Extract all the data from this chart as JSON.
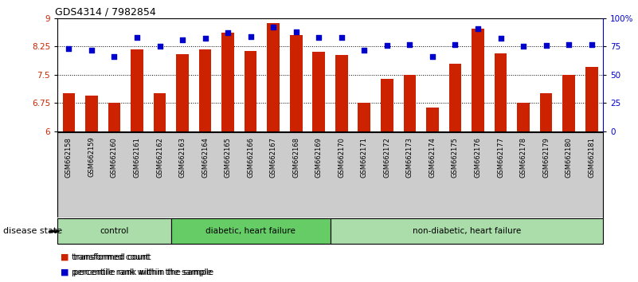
{
  "title": "GDS4314 / 7982854",
  "samples": [
    "GSM662158",
    "GSM662159",
    "GSM662160",
    "GSM662161",
    "GSM662162",
    "GSM662163",
    "GSM662164",
    "GSM662165",
    "GSM662166",
    "GSM662167",
    "GSM662168",
    "GSM662169",
    "GSM662170",
    "GSM662171",
    "GSM662172",
    "GSM662173",
    "GSM662174",
    "GSM662175",
    "GSM662176",
    "GSM662177",
    "GSM662178",
    "GSM662179",
    "GSM662180",
    "GSM662181"
  ],
  "red_values": [
    7.0,
    6.95,
    6.75,
    8.18,
    7.0,
    8.05,
    8.17,
    8.62,
    8.13,
    8.88,
    8.55,
    8.1,
    8.03,
    6.75,
    7.4,
    7.5,
    6.62,
    7.8,
    8.72,
    8.07,
    6.75,
    7.0,
    7.5,
    7.7
  ],
  "blue_values": [
    73,
    72,
    66,
    83,
    75,
    81,
    82,
    87,
    84,
    92,
    88,
    83,
    83,
    72,
    76,
    77,
    66,
    77,
    91,
    82,
    75,
    76,
    77,
    77
  ],
  "groups": [
    {
      "label": "control",
      "start": 0,
      "end": 4,
      "color": "#aaddaa"
    },
    {
      "label": "diabetic, heart failure",
      "start": 5,
      "end": 11,
      "color": "#66cc66"
    },
    {
      "label": "non-diabetic, heart failure",
      "start": 12,
      "end": 23,
      "color": "#aaddaa"
    }
  ],
  "ylim_left": [
    6,
    9
  ],
  "ylim_right": [
    0,
    100
  ],
  "yticks_left": [
    6,
    6.75,
    7.5,
    8.25,
    9
  ],
  "yticks_right": [
    0,
    25,
    50,
    75,
    100
  ],
  "ytick_labels_right": [
    "0",
    "25",
    "50",
    "75",
    "100%"
  ],
  "bar_color": "#cc2200",
  "dot_color": "#0000cc",
  "bg_color": "#ffffff",
  "tick_area_color": "#cccccc",
  "legend_red_label": "transformed count",
  "legend_blue_label": "percentile rank within the sample",
  "disease_state_label": "disease state"
}
